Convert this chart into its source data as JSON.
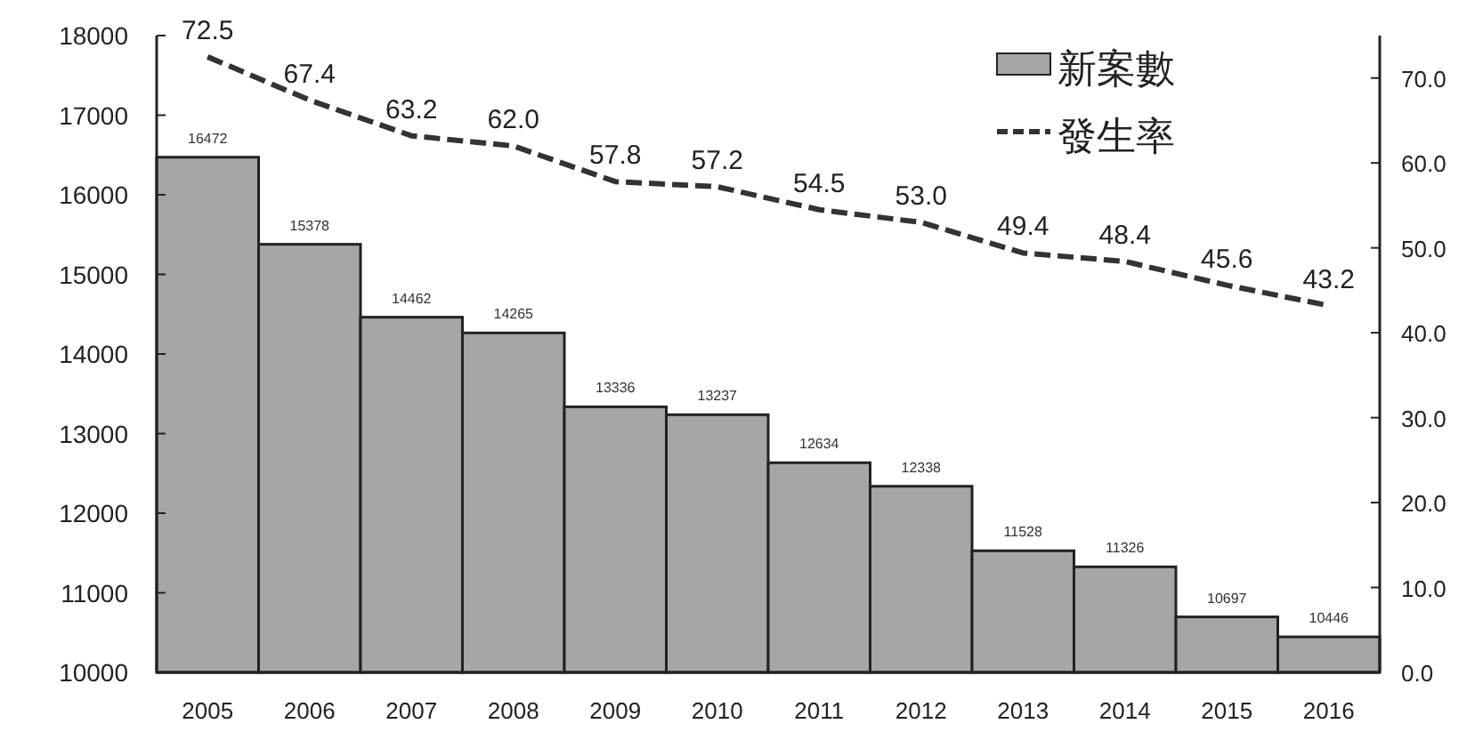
{
  "chart_data": {
    "type": "bar",
    "categories": [
      "2005",
      "2006",
      "2007",
      "2008",
      "2009",
      "2010",
      "2011",
      "2012",
      "2013",
      "2014",
      "2015",
      "2016"
    ],
    "series": [
      {
        "name": "新案數",
        "color": "#a6a6a6",
        "values": [
          16472,
          15378,
          14462,
          14265,
          13336,
          13237,
          12634,
          12338,
          11528,
          11326,
          10697,
          10446
        ]
      },
      {
        "name": "發生率",
        "type": "line",
        "axis": "y2",
        "color": "#333333",
        "line_style": "dashed",
        "values": [
          72.5,
          67.4,
          63.2,
          62.0,
          57.8,
          57.2,
          54.5,
          53.0,
          49.4,
          48.4,
          45.6,
          43.2
        ],
        "value_labels": [
          "72.5",
          "67.4",
          "63.2",
          "62.0",
          "57.8",
          "57.2",
          "54.5",
          "53.0",
          "49.4",
          "48.4",
          "45.6",
          "43.2"
        ]
      }
    ],
    "ylim": [
      10000,
      18000
    ],
    "yticks": [
      10000,
      11000,
      12000,
      13000,
      14000,
      15000,
      16000,
      17000,
      18000
    ],
    "y2lim": [
      0,
      75
    ],
    "y2ticks": [
      {
        "value": 0,
        "label": "0.0"
      },
      {
        "value": 10,
        "label": "10.0"
      },
      {
        "value": 20,
        "label": "20.0"
      },
      {
        "value": 30,
        "label": "30.0"
      },
      {
        "value": 40,
        "label": "40.0"
      },
      {
        "value": 50,
        "label": "50.0"
      },
      {
        "value": 60,
        "label": "60.0"
      },
      {
        "value": 70,
        "label": "70.0"
      }
    ],
    "data_labels": true,
    "legend": "top right",
    "marker": "none"
  }
}
